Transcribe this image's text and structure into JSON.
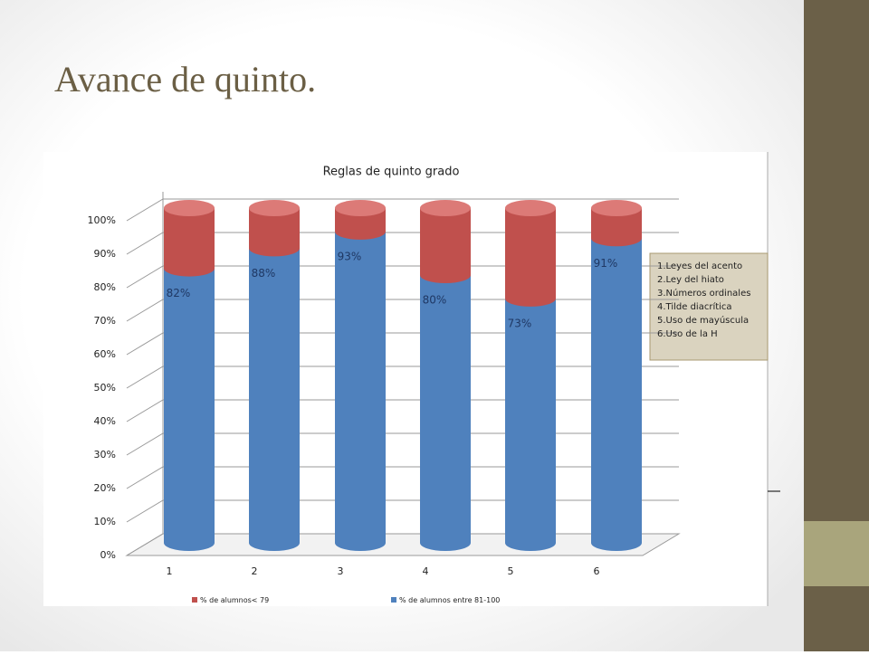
{
  "slide": {
    "title": "Avance de quinto."
  },
  "chart_data": {
    "type": "bar",
    "stacked": true,
    "title": "Reglas de quinto grado",
    "categories": [
      "1",
      "2",
      "3",
      "4",
      "5",
      "6"
    ],
    "series": [
      {
        "name": "% de alumnos entre 81-100",
        "color": "#4f81bd",
        "values": [
          82,
          88,
          93,
          80,
          73,
          91
        ],
        "value_labels": [
          "82%",
          "88%",
          "93%",
          "80%",
          "73%",
          "91%"
        ]
      },
      {
        "name": "% de alumnos< 79",
        "color": "#c0504d",
        "values": [
          18,
          12,
          7,
          20,
          27,
          9
        ]
      }
    ],
    "ylim": [
      0,
      100
    ],
    "yticks": [
      {
        "value": 0,
        "label": "0%"
      },
      {
        "value": 10,
        "label": "10%"
      },
      {
        "value": 20,
        "label": "20%"
      },
      {
        "value": 30,
        "label": "30%"
      },
      {
        "value": 40,
        "label": "40%"
      },
      {
        "value": 50,
        "label": "50%"
      },
      {
        "value": 60,
        "label": "60%"
      },
      {
        "value": 70,
        "label": "70%"
      },
      {
        "value": 80,
        "label": "80%"
      },
      {
        "value": 90,
        "label": "90%"
      },
      {
        "value": 100,
        "label": "100%"
      }
    ],
    "grid": true,
    "annotations": [
      "1.Leyes del acento",
      "2.Ley del hiato",
      "3.Números ordinales",
      "4.Tilde diacrítica",
      "5.Uso de mayúscula",
      "6.Uso de la H"
    ]
  }
}
